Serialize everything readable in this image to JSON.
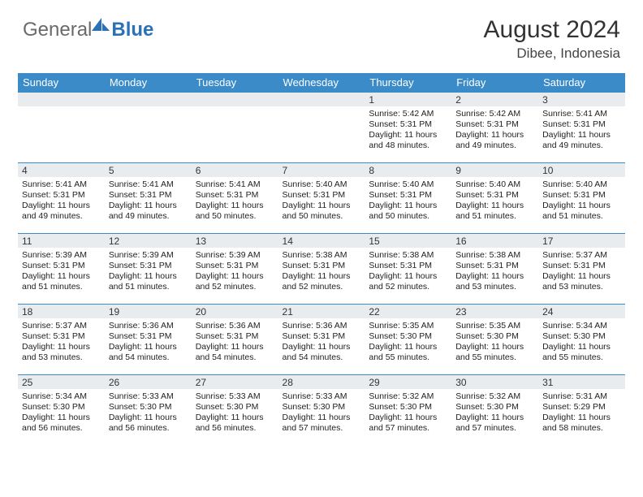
{
  "brand": {
    "general": "General",
    "blue": "Blue"
  },
  "title": "August 2024",
  "location": "Dibee, Indonesia",
  "colors": {
    "header_bg": "#3b8bc8",
    "header_text": "#ffffff",
    "daynum_bg": "#e9ecef",
    "border": "#3b8bc8",
    "brand_gray": "#6a6a6a",
    "brand_blue": "#2a72b5"
  },
  "day_names": [
    "Sunday",
    "Monday",
    "Tuesday",
    "Wednesday",
    "Thursday",
    "Friday",
    "Saturday"
  ],
  "weeks": [
    [
      null,
      null,
      null,
      null,
      {
        "n": "1",
        "sr": "5:42 AM",
        "ss": "5:31 PM",
        "dl": "11 hours and 48 minutes."
      },
      {
        "n": "2",
        "sr": "5:42 AM",
        "ss": "5:31 PM",
        "dl": "11 hours and 49 minutes."
      },
      {
        "n": "3",
        "sr": "5:41 AM",
        "ss": "5:31 PM",
        "dl": "11 hours and 49 minutes."
      }
    ],
    [
      {
        "n": "4",
        "sr": "5:41 AM",
        "ss": "5:31 PM",
        "dl": "11 hours and 49 minutes."
      },
      {
        "n": "5",
        "sr": "5:41 AM",
        "ss": "5:31 PM",
        "dl": "11 hours and 49 minutes."
      },
      {
        "n": "6",
        "sr": "5:41 AM",
        "ss": "5:31 PM",
        "dl": "11 hours and 50 minutes."
      },
      {
        "n": "7",
        "sr": "5:40 AM",
        "ss": "5:31 PM",
        "dl": "11 hours and 50 minutes."
      },
      {
        "n": "8",
        "sr": "5:40 AM",
        "ss": "5:31 PM",
        "dl": "11 hours and 50 minutes."
      },
      {
        "n": "9",
        "sr": "5:40 AM",
        "ss": "5:31 PM",
        "dl": "11 hours and 51 minutes."
      },
      {
        "n": "10",
        "sr": "5:40 AM",
        "ss": "5:31 PM",
        "dl": "11 hours and 51 minutes."
      }
    ],
    [
      {
        "n": "11",
        "sr": "5:39 AM",
        "ss": "5:31 PM",
        "dl": "11 hours and 51 minutes."
      },
      {
        "n": "12",
        "sr": "5:39 AM",
        "ss": "5:31 PM",
        "dl": "11 hours and 51 minutes."
      },
      {
        "n": "13",
        "sr": "5:39 AM",
        "ss": "5:31 PM",
        "dl": "11 hours and 52 minutes."
      },
      {
        "n": "14",
        "sr": "5:38 AM",
        "ss": "5:31 PM",
        "dl": "11 hours and 52 minutes."
      },
      {
        "n": "15",
        "sr": "5:38 AM",
        "ss": "5:31 PM",
        "dl": "11 hours and 52 minutes."
      },
      {
        "n": "16",
        "sr": "5:38 AM",
        "ss": "5:31 PM",
        "dl": "11 hours and 53 minutes."
      },
      {
        "n": "17",
        "sr": "5:37 AM",
        "ss": "5:31 PM",
        "dl": "11 hours and 53 minutes."
      }
    ],
    [
      {
        "n": "18",
        "sr": "5:37 AM",
        "ss": "5:31 PM",
        "dl": "11 hours and 53 minutes."
      },
      {
        "n": "19",
        "sr": "5:36 AM",
        "ss": "5:31 PM",
        "dl": "11 hours and 54 minutes."
      },
      {
        "n": "20",
        "sr": "5:36 AM",
        "ss": "5:31 PM",
        "dl": "11 hours and 54 minutes."
      },
      {
        "n": "21",
        "sr": "5:36 AM",
        "ss": "5:31 PM",
        "dl": "11 hours and 54 minutes."
      },
      {
        "n": "22",
        "sr": "5:35 AM",
        "ss": "5:30 PM",
        "dl": "11 hours and 55 minutes."
      },
      {
        "n": "23",
        "sr": "5:35 AM",
        "ss": "5:30 PM",
        "dl": "11 hours and 55 minutes."
      },
      {
        "n": "24",
        "sr": "5:34 AM",
        "ss": "5:30 PM",
        "dl": "11 hours and 55 minutes."
      }
    ],
    [
      {
        "n": "25",
        "sr": "5:34 AM",
        "ss": "5:30 PM",
        "dl": "11 hours and 56 minutes."
      },
      {
        "n": "26",
        "sr": "5:33 AM",
        "ss": "5:30 PM",
        "dl": "11 hours and 56 minutes."
      },
      {
        "n": "27",
        "sr": "5:33 AM",
        "ss": "5:30 PM",
        "dl": "11 hours and 56 minutes."
      },
      {
        "n": "28",
        "sr": "5:33 AM",
        "ss": "5:30 PM",
        "dl": "11 hours and 57 minutes."
      },
      {
        "n": "29",
        "sr": "5:32 AM",
        "ss": "5:30 PM",
        "dl": "11 hours and 57 minutes."
      },
      {
        "n": "30",
        "sr": "5:32 AM",
        "ss": "5:30 PM",
        "dl": "11 hours and 57 minutes."
      },
      {
        "n": "31",
        "sr": "5:31 AM",
        "ss": "5:29 PM",
        "dl": "11 hours and 58 minutes."
      }
    ]
  ],
  "labels": {
    "sunrise": "Sunrise:",
    "sunset": "Sunset:",
    "daylight": "Daylight:"
  }
}
